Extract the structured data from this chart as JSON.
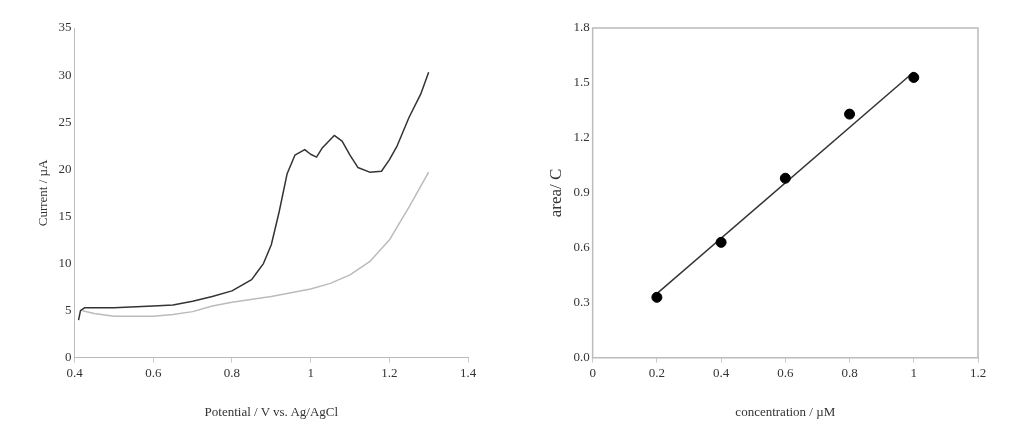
{
  "chart_data": [
    {
      "type": "line",
      "xlabel": "Potential / V vs. Ag/AgCl",
      "ylabel": "Current / µA",
      "xlim": [
        0.4,
        1.4
      ],
      "ylim": [
        0,
        35
      ],
      "xticks": [
        0.4,
        0.6,
        0.8,
        1,
        1.2,
        1.4
      ],
      "yticks": [
        0,
        5,
        10,
        15,
        20,
        25,
        30,
        35
      ],
      "grid": false,
      "legend": false,
      "marker": "none",
      "series": [
        {
          "color": "#333333",
          "x": [
            0.41,
            0.415,
            0.425,
            0.5,
            0.6,
            0.65,
            0.7,
            0.75,
            0.8,
            0.85,
            0.88,
            0.9,
            0.92,
            0.94,
            0.96,
            0.985,
            1.0,
            1.015,
            1.03,
            1.06,
            1.08,
            1.1,
            1.12,
            1.15,
            1.18,
            1.2,
            1.22,
            1.25,
            1.28,
            1.3
          ],
          "values": [
            4.0,
            5.0,
            5.3,
            5.3,
            5.5,
            5.6,
            6.0,
            6.5,
            7.1,
            8.3,
            10,
            12,
            15.5,
            19.5,
            21.5,
            22.1,
            21.6,
            21.3,
            22.3,
            23.6,
            23.0,
            21.5,
            20.2,
            19.7,
            19.8,
            21,
            22.5,
            25.5,
            28,
            30.3
          ]
        },
        {
          "color": "#bbbbbb",
          "x": [
            0.42,
            0.45,
            0.5,
            0.6,
            0.65,
            0.7,
            0.75,
            0.8,
            0.9,
            1.0,
            1.05,
            1.1,
            1.15,
            1.2,
            1.25,
            1.3
          ],
          "values": [
            5.0,
            4.7,
            4.4,
            4.4,
            4.6,
            4.9,
            5.5,
            5.9,
            6.5,
            7.3,
            7.9,
            8.8,
            10.2,
            12.5,
            16,
            19.7
          ]
        }
      ]
    },
    {
      "type": "scatter",
      "xlabel": "concentration / µM",
      "ylabel": "area/ C",
      "xlim": [
        0,
        1.2
      ],
      "ylim": [
        0,
        1.8
      ],
      "xticks": [
        0,
        0.2,
        0.4,
        0.6,
        0.8,
        1,
        1.2
      ],
      "yticks": [
        {
          "value": 0,
          "label": "0.0"
        },
        0.3,
        0.6,
        0.9,
        1.2,
        1.5,
        1.8
      ],
      "grid": false,
      "legend": false,
      "series": [
        {
          "color": "#000000",
          "marker": "circle",
          "x": [
            0.2,
            0.4,
            0.6,
            0.8,
            1.0
          ],
          "values": [
            0.33,
            0.63,
            0.98,
            1.33,
            1.53
          ]
        },
        {
          "type": "line",
          "marker": "none",
          "color": "#333333",
          "x": [
            0.2,
            1.0
          ],
          "values": [
            0.35,
            1.56
          ]
        }
      ]
    }
  ]
}
